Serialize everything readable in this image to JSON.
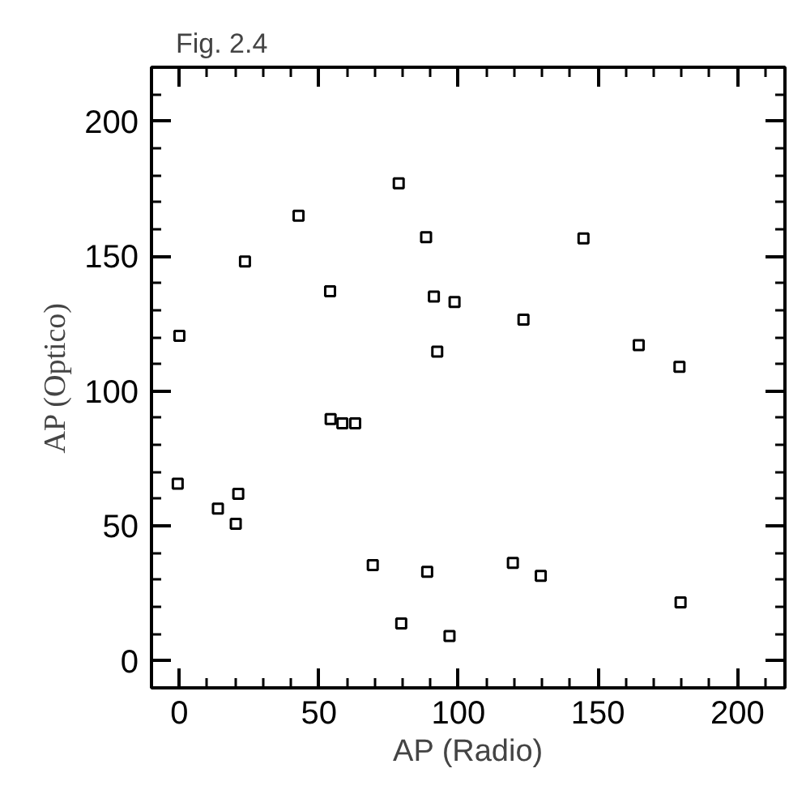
{
  "chart_data": {
    "type": "scatter",
    "title": "Fig. 2.4",
    "xlabel": "AP (Radio)",
    "ylabel": "AP (Optico)",
    "xlim": [
      -10,
      217
    ],
    "ylim": [
      -10,
      220
    ],
    "xticks": [
      0,
      50,
      100,
      150,
      200
    ],
    "yticks": [
      0,
      50,
      100,
      150,
      200
    ],
    "marker": "square",
    "grid": false,
    "series": [
      {
        "color": "#000000",
        "x": [
          0,
          23.5,
          42.7,
          78.6,
          88.4,
          54,
          91.2,
          98.6,
          123.3,
          144.8,
          164.6,
          179.2,
          92.4,
          54.2,
          58.4,
          63,
          -0.6,
          13.8,
          21.1,
          20.2,
          69.3,
          88.8,
          119.5,
          129.5,
          179.6,
          79.5,
          96.8
        ],
        "values": [
          120.5,
          148,
          165,
          177,
          157,
          137,
          135,
          133,
          126.5,
          156.6,
          117,
          109,
          114.6,
          89.6,
          88,
          88,
          65.7,
          56.4,
          61.9,
          50.8,
          35.5,
          33,
          36.3,
          31.5,
          21.7,
          13.9,
          9.2
        ]
      }
    ]
  }
}
